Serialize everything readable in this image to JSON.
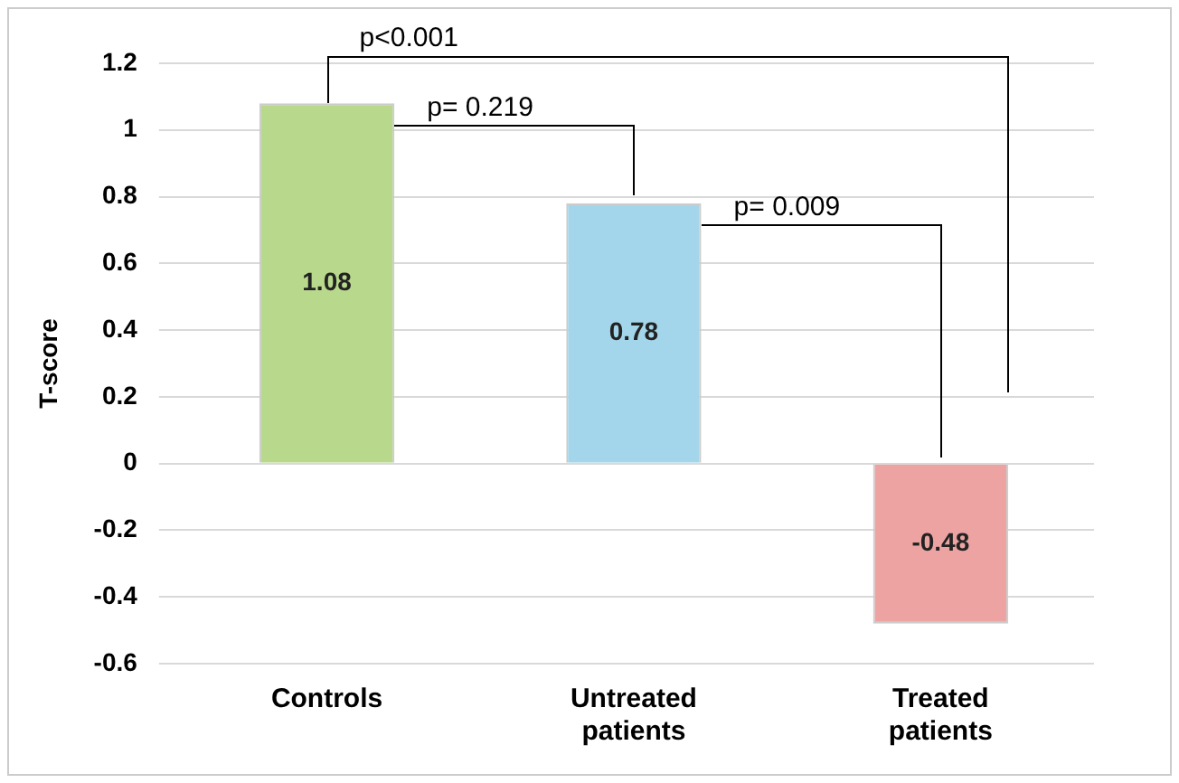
{
  "chart_data": {
    "type": "bar",
    "ylabel": "T-score",
    "categories": [
      "Controls",
      "Untreated patients",
      "Treated patients"
    ],
    "values": [
      1.08,
      0.78,
      -0.48
    ],
    "colors": [
      "#b8d98c",
      "#a3d6ea",
      "#eea3a3"
    ],
    "ylim": [
      -0.6,
      1.2
    ],
    "yticks": [
      -0.6,
      -0.4,
      -0.2,
      0,
      0.2,
      0.4,
      0.6,
      0.8,
      1,
      1.2
    ],
    "grid": "y",
    "data_labels": true,
    "annotations": [
      "p= 0.219",
      "p= 0.009",
      "p<0.001"
    ]
  }
}
